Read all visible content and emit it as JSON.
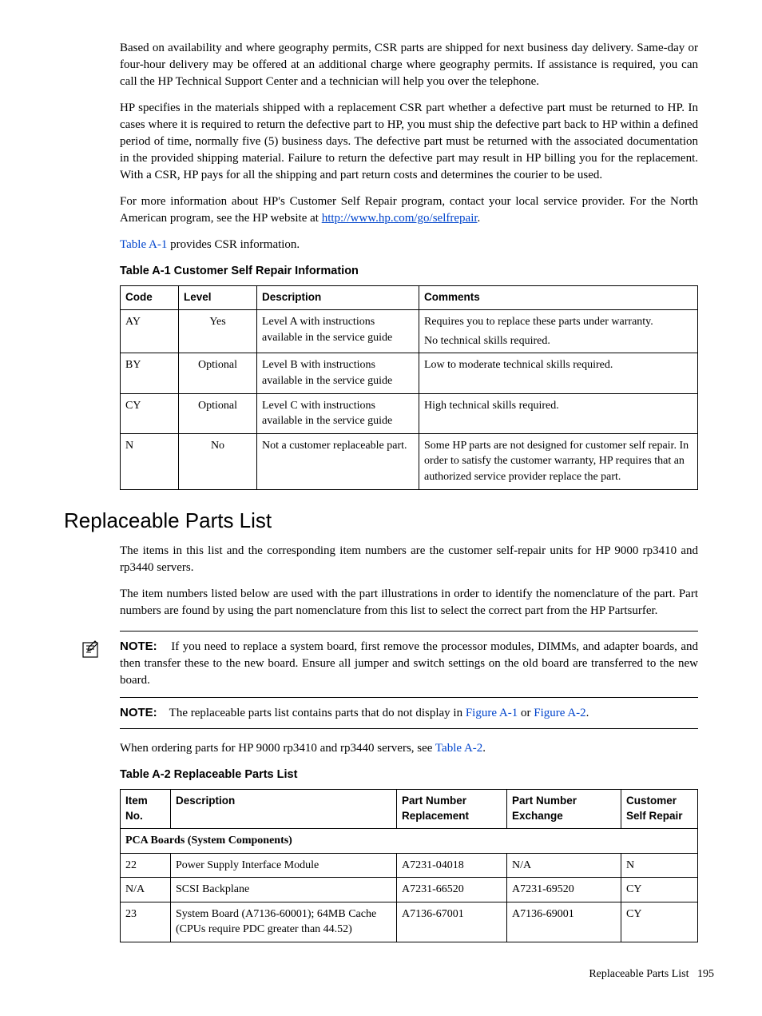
{
  "paragraphs": {
    "p1": "Based on availability and where geography permits, CSR parts are shipped for next business day delivery. Same-day or four-hour delivery may be offered at an additional charge where geography permits. If assistance is required, you can call the HP Technical Support Center and a technician will help you over the telephone.",
    "p2": "HP specifies in the materials shipped with a replacement CSR part whether a defective part must be returned to HP. In cases where it is required to return the defective part to HP, you must ship the defective part back to HP within a defined period of time, normally five (5) business days. The defective part must be returned with the associated documentation in the provided shipping material. Failure to return the defective part may result in HP billing you for the replacement. With a CSR, HP pays for all the shipping and part return costs and determines the courier to be used.",
    "p3_a": "For more information about HP's Customer Self Repair program, contact your local service provider. For the North American program, see the HP website at ",
    "p3_link": "http://www.hp.com/go/selfrepair",
    "p3_c": ".",
    "p4_ref": "Table A-1",
    "p4_text": " provides CSR information."
  },
  "tableA1": {
    "title": "Table A-1 Customer Self Repair Information",
    "headers": [
      "Code",
      "Level",
      "Description",
      "Comments"
    ],
    "rows": [
      {
        "code": "AY",
        "level": "Yes",
        "desc": "Level A with instructions available in the service guide",
        "comments": [
          "Requires you to replace these parts under warranty.",
          "No technical skills required."
        ]
      },
      {
        "code": "BY",
        "level": "Optional",
        "desc": "Level B with instructions available in the service guide",
        "comments": [
          "Low to moderate technical skills required."
        ]
      },
      {
        "code": "CY",
        "level": "Optional",
        "desc": "Level C with instructions available in the service guide",
        "comments": [
          "High technical skills required."
        ]
      },
      {
        "code": "N",
        "level": "No",
        "desc": "Not a customer replaceable part.",
        "comments": [
          "Some HP parts are not designed for customer self repair. In order to satisfy the customer warranty, HP requires that an authorized service provider replace the part."
        ]
      }
    ]
  },
  "section": {
    "title": "Replaceable Parts List",
    "p1": "The items in this list and the corresponding item numbers are the customer self-repair units for HP 9000 rp3410 and rp3440 servers.",
    "p2": "The item numbers listed below are used with the part illustrations in order to identify the nomenclature of the part. Part numbers are found by using the part nomenclature from this list to select the correct part from the HP Partsurfer."
  },
  "note1": {
    "label": "NOTE:",
    "text": "If you need to replace a system board, first remove the processor modules, DIMMs, and adapter boards, and then transfer these to the new board. Ensure all jumper and switch settings on the old board are transferred to the new board."
  },
  "note2": {
    "label": "NOTE:",
    "text_a": "The replaceable parts list contains parts that do not display in ",
    "ref1": "Figure A-1",
    "text_b": " or ",
    "ref2": "Figure A-2",
    "text_c": "."
  },
  "ordering": {
    "text_a": "When ordering parts for HP 9000 rp3410 and rp3440 servers, see ",
    "ref": "Table A-2",
    "text_b": "."
  },
  "tableA2": {
    "title": "Table A-2 Replaceable Parts List",
    "headers": [
      "Item No.",
      "Description",
      "Part Number Replacement",
      "Part Number Exchange",
      "Customer Self Repair"
    ],
    "category": "PCA Boards (System Components)",
    "rows": [
      {
        "item": "22",
        "desc": "Power Supply Interface Module",
        "rep": "A7231-04018",
        "exch": "N/A",
        "csr": "N"
      },
      {
        "item": "N/A",
        "desc": "SCSI Backplane",
        "rep": "A7231-66520",
        "exch": "A7231-69520",
        "csr": "CY"
      },
      {
        "item": "23",
        "desc": "System Board (A7136-60001); 64MB Cache (CPUs require PDC greater than 44.52)",
        "rep": "A7136-67001",
        "exch": "A7136-69001",
        "csr": "CY"
      }
    ]
  },
  "footer": {
    "text": "Replaceable Parts List",
    "page": "195"
  },
  "colors": {
    "link": "#0044cc",
    "text": "#000000",
    "border": "#000000"
  },
  "col_widths": {
    "a1": [
      "60px",
      "85px",
      "190px",
      "auto"
    ],
    "a2": [
      "50px",
      "270px",
      "125px",
      "130px",
      "auto"
    ]
  }
}
